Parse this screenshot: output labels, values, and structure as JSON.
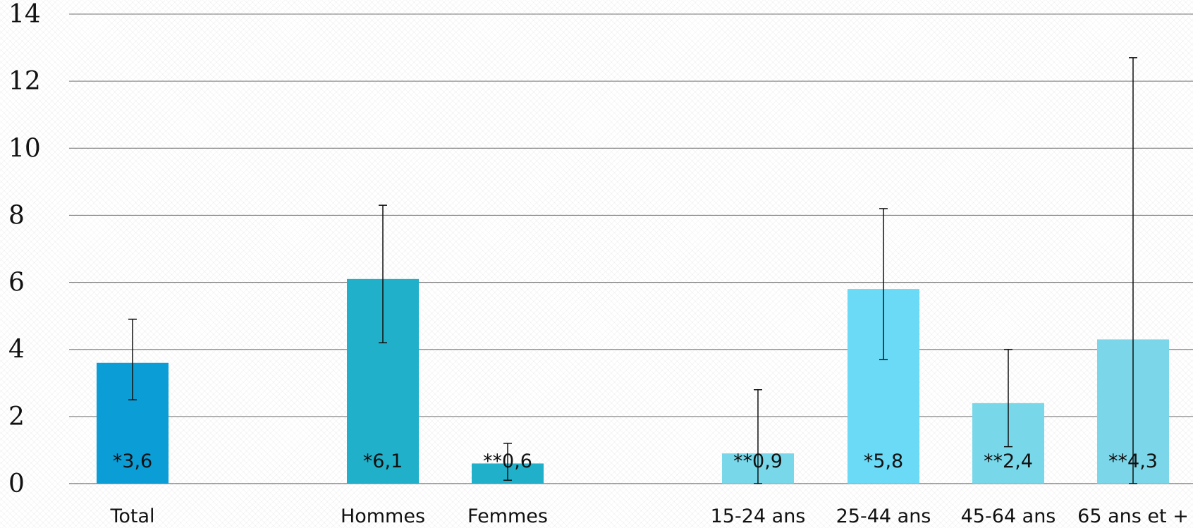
{
  "chart_data": {
    "type": "bar",
    "title": "",
    "xlabel": "",
    "ylabel": "",
    "ylim": [
      0,
      14
    ],
    "yticks": [
      "0",
      "2",
      "4",
      "6",
      "8",
      "10",
      "12",
      "14"
    ],
    "grid": true,
    "legend": "none",
    "categories": [
      "Total",
      "Hommes",
      "Femmes",
      "15-24 ans",
      "25-44 ans",
      "45-64 ans",
      "65 ans et +"
    ],
    "groups": [
      [
        "Total"
      ],
      [
        "Hommes",
        "Femmes"
      ],
      [
        "15-24 ans",
        "25-44 ans",
        "45-64 ans",
        "65 ans et +"
      ]
    ],
    "values": [
      3.6,
      6.1,
      0.6,
      0.9,
      5.8,
      2.4,
      4.3
    ],
    "error_low": [
      2.5,
      4.2,
      0.1,
      0.0,
      3.7,
      1.1,
      0.0
    ],
    "error_high": [
      4.9,
      8.3,
      1.2,
      2.8,
      8.2,
      4.0,
      12.7
    ],
    "data_labels": [
      "*3,6",
      "*6,1",
      "**0,6",
      "**0,9",
      "*5,8",
      "**2,4",
      "**4,3"
    ],
    "colors": [
      "#0A9DD6",
      "#20B0C9",
      "#20B0C9",
      "#78D8EA",
      "#6ADAF6",
      "#78D8EA",
      "#7AD6E8"
    ]
  }
}
